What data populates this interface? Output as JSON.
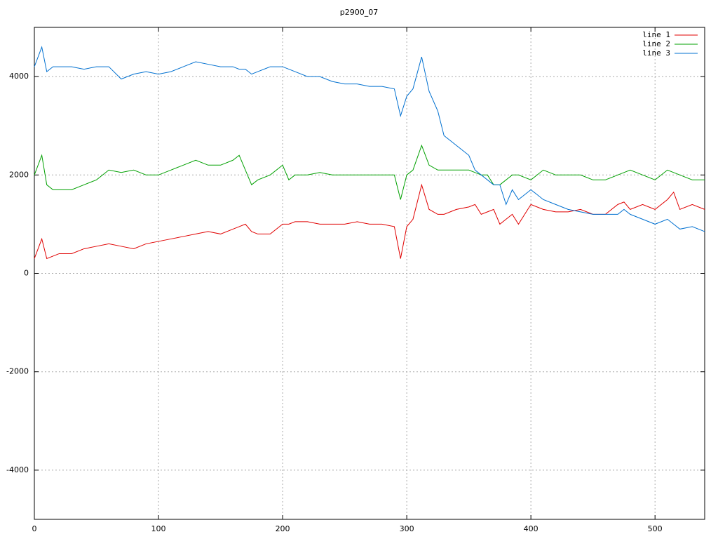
{
  "chart_data": {
    "type": "line",
    "title": "p2900_07",
    "x": [
      0,
      6,
      10,
      15,
      20,
      30,
      40,
      50,
      60,
      70,
      80,
      90,
      100,
      110,
      120,
      130,
      140,
      150,
      160,
      165,
      170,
      175,
      180,
      190,
      200,
      205,
      210,
      220,
      230,
      240,
      250,
      260,
      270,
      280,
      290,
      295,
      300,
      305,
      312,
      318,
      325,
      330,
      340,
      350,
      355,
      360,
      365,
      370,
      375,
      380,
      385,
      390,
      395,
      400,
      410,
      420,
      430,
      440,
      450,
      460,
      470,
      475,
      480,
      490,
      500,
      510,
      515,
      520,
      530,
      540
    ],
    "series": [
      {
        "name": "line 1",
        "color": "#e00000",
        "values": [
          300,
          700,
          300,
          350,
          400,
          400,
          500,
          550,
          600,
          550,
          500,
          600,
          650,
          700,
          750,
          800,
          850,
          800,
          900,
          950,
          1000,
          850,
          800,
          800,
          1000,
          1000,
          1050,
          1050,
          1000,
          1000,
          1000,
          1050,
          1000,
          1000,
          950,
          300,
          950,
          1100,
          1800,
          1300,
          1200,
          1200,
          1300,
          1350,
          1400,
          1200,
          1250,
          1300,
          1000,
          1100,
          1200,
          1000,
          1200,
          1400,
          1300,
          1250,
          1250,
          1300,
          1200,
          1200,
          1400,
          1450,
          1300,
          1400,
          1300,
          1500,
          1650,
          1300,
          1400,
          1300
        ]
      },
      {
        "name": "line 2",
        "color": "#00a000",
        "values": [
          2000,
          2400,
          1800,
          1700,
          1700,
          1700,
          1800,
          1900,
          2100,
          2050,
          2100,
          2000,
          2000,
          2100,
          2200,
          2300,
          2200,
          2200,
          2300,
          2400,
          2100,
          1800,
          1900,
          2000,
          2200,
          1900,
          2000,
          2000,
          2050,
          2000,
          2000,
          2000,
          2000,
          2000,
          2000,
          1500,
          2000,
          2100,
          2600,
          2200,
          2100,
          2100,
          2100,
          2100,
          2050,
          2000,
          2000,
          1800,
          1800,
          1900,
          2000,
          2000,
          1950,
          1900,
          2100,
          2000,
          2000,
          2000,
          1900,
          1900,
          2000,
          2050,
          2100,
          2000,
          1900,
          2100,
          2050,
          2000,
          1900,
          1900
        ]
      },
      {
        "name": "line 3",
        "color": "#0070d0",
        "values": [
          4200,
          4600,
          4100,
          4200,
          4200,
          4200,
          4150,
          4200,
          4200,
          3950,
          4050,
          4100,
          4050,
          4100,
          4200,
          4300,
          4250,
          4200,
          4200,
          4150,
          4150,
          4050,
          4100,
          4200,
          4200,
          4150,
          4100,
          4000,
          4000,
          3900,
          3850,
          3850,
          3800,
          3800,
          3750,
          3200,
          3600,
          3750,
          4400,
          3700,
          3300,
          2800,
          2600,
          2400,
          2100,
          2000,
          1900,
          1800,
          1800,
          1400,
          1700,
          1500,
          1600,
          1700,
          1500,
          1400,
          1300,
          1250,
          1200,
          1200,
          1200,
          1300,
          1200,
          1100,
          1000,
          1100,
          1000,
          900,
          950,
          850
        ]
      }
    ],
    "xlim": [
      0,
      540
    ],
    "xticks": [
      0,
      100,
      200,
      300,
      400,
      500
    ],
    "ylim": [
      -5000,
      5000
    ],
    "yticks": [
      -4000,
      -2000,
      0,
      2000,
      4000
    ],
    "grid": true,
    "legend": "top-right"
  }
}
